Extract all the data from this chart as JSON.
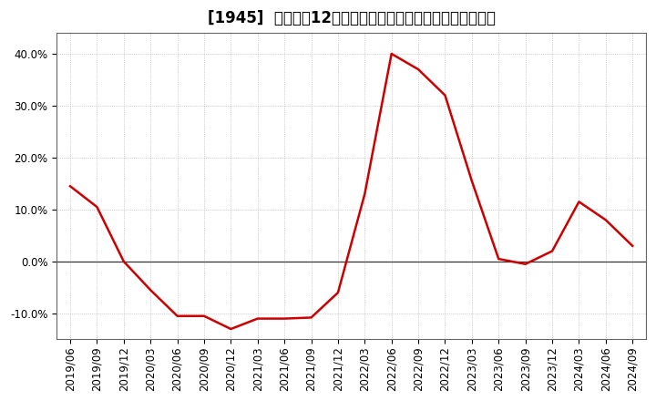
{
  "title": "[1945]  売上高の12か月移動合計の対前年同期増減率の推移",
  "line_color": "#cc0000",
  "background_color": "#ffffff",
  "plot_bg_color": "#ffffff",
  "grid_color": "#aaaaaa",
  "zero_line_color": "#333333",
  "ylim": [
    -0.15,
    0.44
  ],
  "yticks": [
    -0.1,
    0.0,
    0.1,
    0.2,
    0.3,
    0.4
  ],
  "dates": [
    "2019/06",
    "2019/09",
    "2019/12",
    "2020/03",
    "2020/06",
    "2020/09",
    "2020/12",
    "2021/03",
    "2021/06",
    "2021/09",
    "2021/12",
    "2022/03",
    "2022/06",
    "2022/09",
    "2022/12",
    "2023/03",
    "2023/06",
    "2023/09",
    "2023/12",
    "2024/03",
    "2024/06",
    "2024/09"
  ],
  "values": [
    0.145,
    0.105,
    0.0,
    -0.055,
    -0.105,
    -0.105,
    -0.13,
    -0.11,
    -0.11,
    -0.108,
    -0.06,
    0.13,
    0.4,
    0.37,
    0.32,
    0.155,
    0.005,
    -0.005,
    0.02,
    0.115,
    0.08,
    0.03
  ],
  "title_fontsize": 12,
  "tick_fontsize": 8.5,
  "line_width": 1.8
}
